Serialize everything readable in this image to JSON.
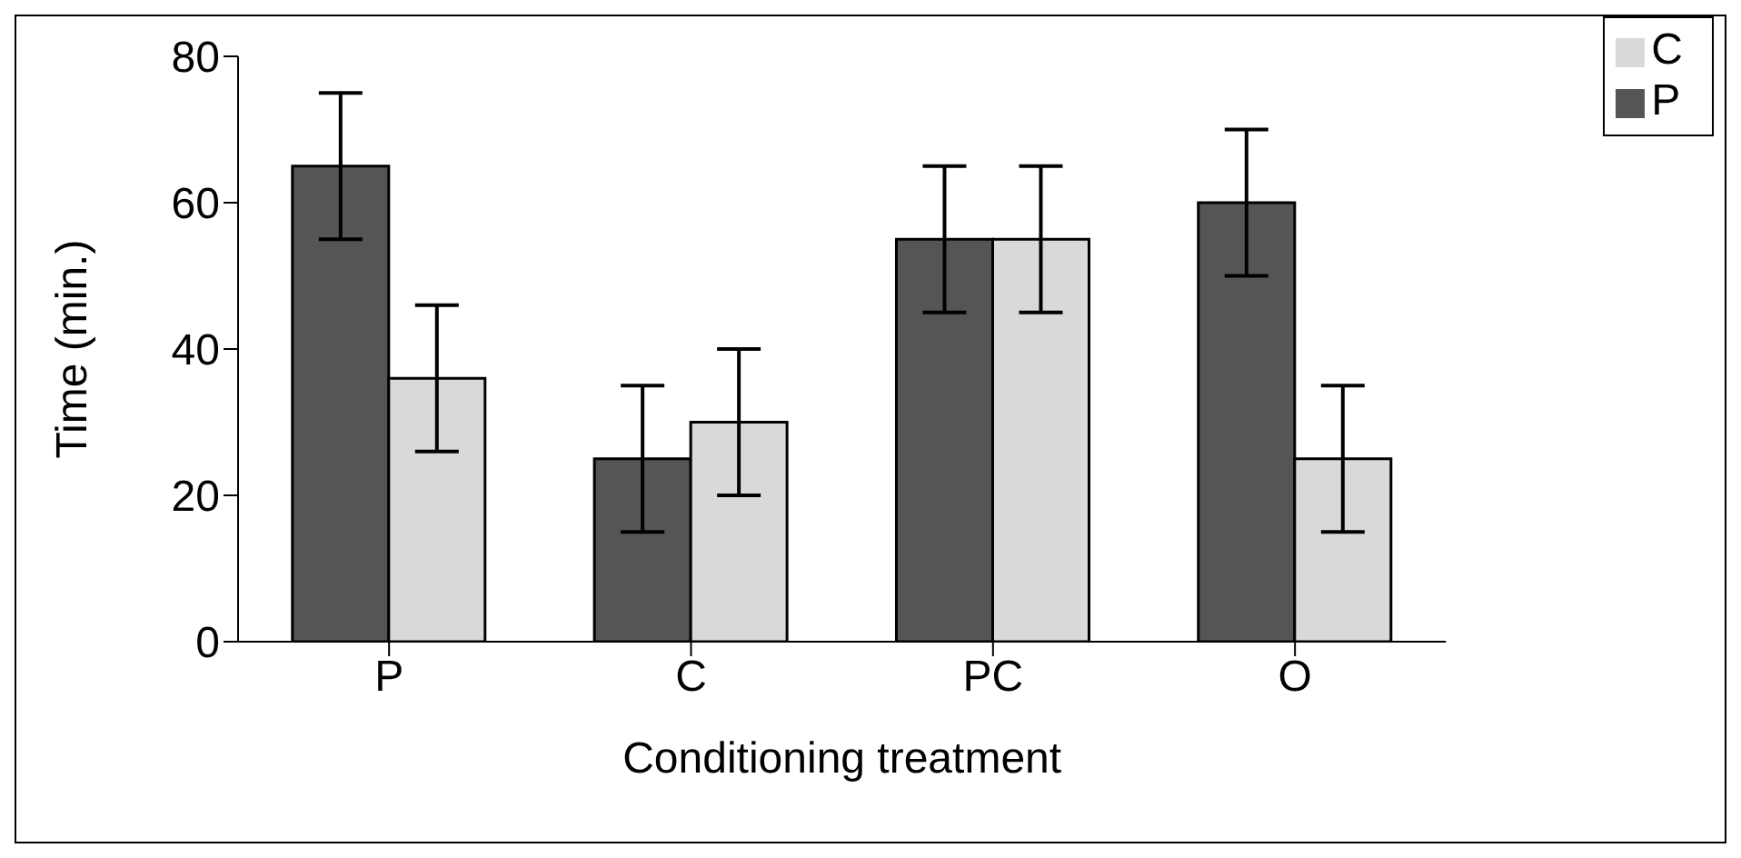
{
  "chart_data": {
    "type": "bar",
    "xlabel": "Conditioning treatment",
    "ylabel": "Time (min.)",
    "categories": [
      "P",
      "C",
      "PC",
      "O"
    ],
    "series": [
      {
        "name": "P",
        "color": "#555555",
        "values": [
          65,
          25,
          55,
          60
        ],
        "errors": [
          10,
          10,
          10,
          10
        ]
      },
      {
        "name": "C",
        "color": "#d9d9d9",
        "values": [
          36,
          30,
          55,
          25
        ],
        "errors": [
          10,
          10,
          10,
          10
        ]
      }
    ],
    "ylim": [
      0,
      80
    ],
    "yticks": [
      0,
      20,
      40,
      60,
      80
    ],
    "grid": false,
    "legend": "top right"
  }
}
